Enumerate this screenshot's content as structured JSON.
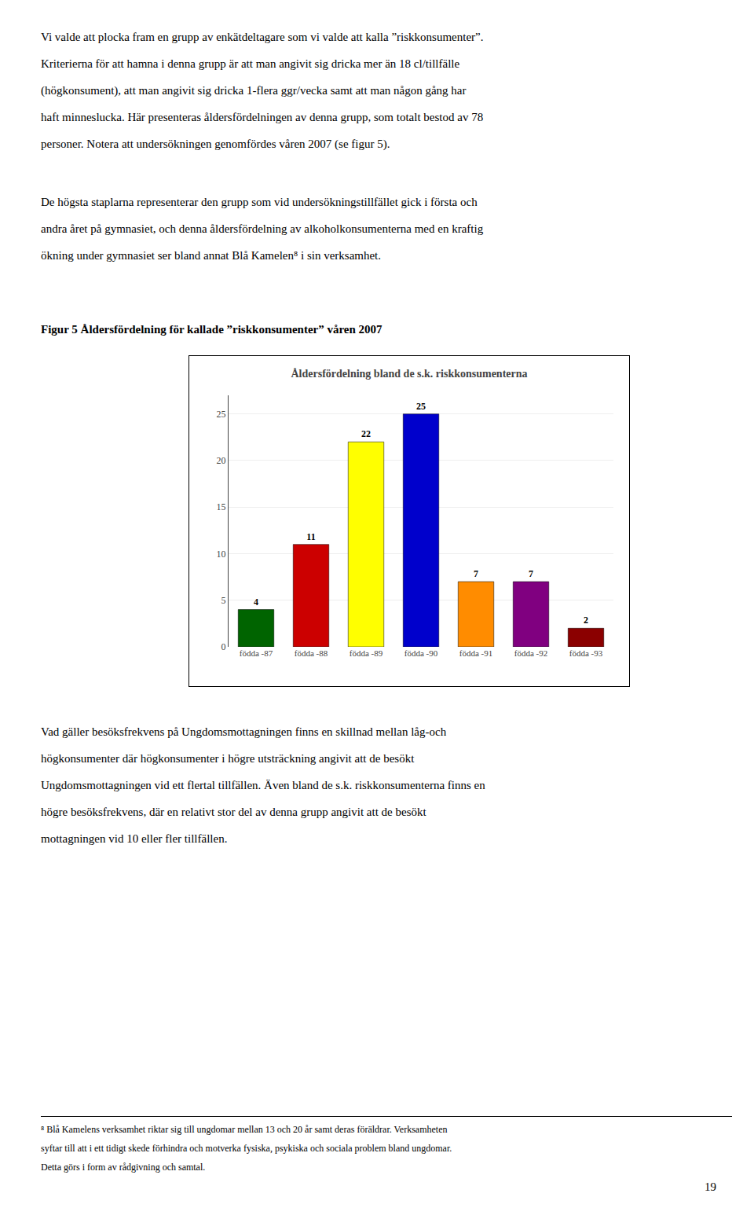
{
  "chart_data": {
    "type": "bar",
    "title": "Åldersfördelning bland de s.k. riskkonsumenterna",
    "categories": [
      "födda -87",
      "födda -88",
      "födda -89",
      "födda -90",
      "födda -91",
      "födda -92",
      "födda -93"
    ],
    "values": [
      4,
      11,
      22,
      25,
      7,
      7,
      2
    ],
    "colors": [
      "#006400",
      "#CC0000",
      "#FFFF00",
      "#0000CC",
      "#FF8C00",
      "#800080",
      "#8B0000"
    ],
    "ylim": [
      0,
      27
    ],
    "yticks": [
      0,
      5,
      10,
      15,
      20,
      25
    ],
    "grid": true,
    "data_labels": true,
    "annotations": [
      "Vi valde att plocka fram en grupp av enkätdeltagare som vi valde att kalla ”riskkonsumenter”.\nKriterierna för att hamna i denna grupp är att man angivit sig dricka mer än 18 cl/tillfälle\n(högkonsument), att man angivit sig dricka 1-flera ggr/vecka samt att man någon gång har\nhaft  minneslucka. Här presenteras åldersfördelningen av denna grupp, som totalt bestod av 78\npersoner. Notera att undersökningen genomfördes våren 2007 (se figur 5).",
      "De högsta staplarna representerar den grupp som vid undersökningstillfället gick i första och\nandra året på gymnasiet, och denna åldersfördelning av alkoholkonsumenterna med en kraftig\nökning under gymnasiet ser bland annat Blå Kamelen⁸ i sin verksamhet.",
      "Figur 5 Åldersfördelning för kallade ”riskkonsumenter” våren 2007",
      "Vad gäller besöksfrekvens på Ungdomsmottagningen finns en skillnad mellan låg-och\nhögkonsumenter där högkonsumenter i högre utsträckning angivit att de besökt\nUngdomsmottagningen vid ett flertal tillfällen. Även bland de s.k. riskkonsumenterna finns en\nhögre besöksfrekvens, där en relativt stor del av denna grupp angivit att de besökt\nmottagningen vid 10 eller fler tillfällen.",
      "⁸ Blå Kamelens verksamhet riktar sig till ungdomar mellan 13 och 20 år samt deras föräldrar. Verksamheten\nsyftar till att i ett tidigt skede förhindra och motverka fysiska, psykiska och sociala problem bland ungdomar.\nDetta görs i form av rådgivning och samtal.",
      "19"
    ]
  }
}
